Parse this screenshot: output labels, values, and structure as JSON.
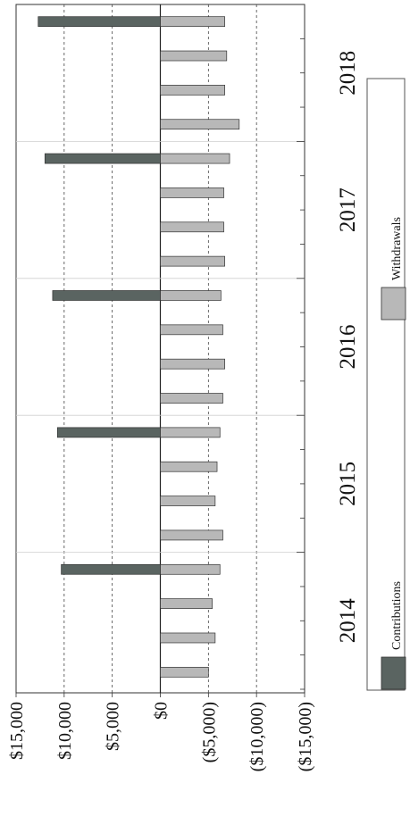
{
  "chart_data": {
    "type": "bar",
    "orientation": "rotated-90-clockwise",
    "title": "",
    "xlabel": "",
    "ylabel": "",
    "value_ticks": [
      "$15,000",
      "$10,000",
      "$5,000",
      "$0",
      "($5,000)",
      "($10,000)",
      "($15,000)"
    ],
    "value_tick_values": [
      15000,
      10000,
      5000,
      0,
      -5000,
      -10000,
      -15000
    ],
    "ylim": [
      -15000,
      15000
    ],
    "year_labels": [
      "2014",
      "2015",
      "2016",
      "2017",
      "2018"
    ],
    "quarters_per_year": 4,
    "period_count": 20,
    "grid": "dashed at value ticks; light lines between years",
    "legend": {
      "placement": "right",
      "entries": [
        "Contributions",
        "Withdrawals"
      ]
    },
    "series": [
      {
        "name": "Withdrawals",
        "color": "#b8b8b8",
        "values": [
          -5000,
          -5700,
          -5400,
          -6200,
          -6500,
          -5700,
          -5900,
          -6200,
          -6500,
          -6700,
          -6500,
          -6300,
          -6700,
          -6600,
          -6600,
          -7200,
          -8200,
          -6700,
          -6900,
          -6700
        ]
      },
      {
        "name": "Contributions",
        "color": "#5a6461",
        "values": [
          null,
          null,
          null,
          10300,
          null,
          null,
          null,
          10700,
          null,
          null,
          null,
          11200,
          null,
          null,
          null,
          12000,
          null,
          null,
          null,
          12700
        ]
      }
    ]
  }
}
